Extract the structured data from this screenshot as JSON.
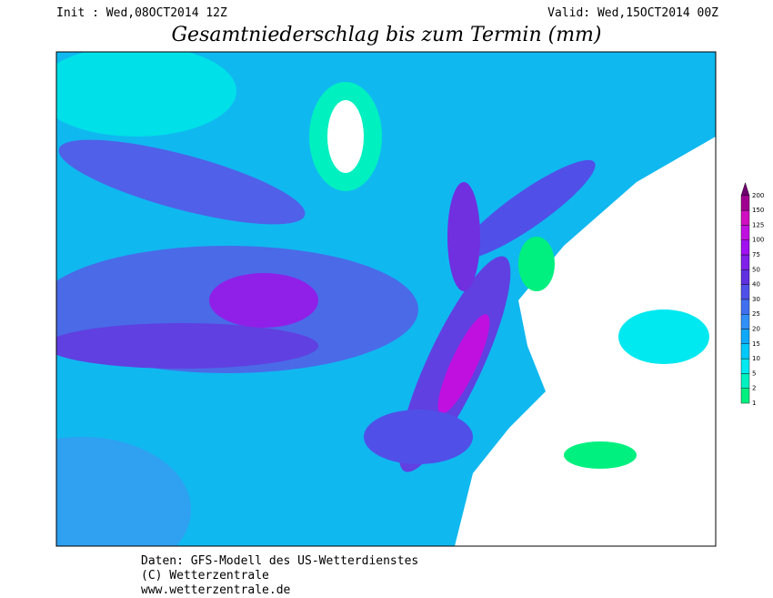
{
  "header": {
    "init": "Init : Wed,08OCT2014 12Z",
    "valid": "Valid: Wed,15OCT2014 00Z",
    "title": "Gesamtniederschlag bis zum Termin (mm)"
  },
  "legend": {
    "levels": [
      1,
      2,
      5,
      10,
      15,
      20,
      25,
      30,
      40,
      50,
      75,
      100,
      125,
      150,
      200
    ],
    "colors": [
      "#00f080",
      "#00f0c0",
      "#00e8f0",
      "#00c8f8",
      "#10a8f8",
      "#3090f8",
      "#4070f0",
      "#5050e8",
      "#6030e0",
      "#8020e8",
      "#a010f0",
      "#c010e0",
      "#d010c0",
      "#a00090",
      "#700070"
    ]
  },
  "footer": {
    "lines": [
      "Daten: GFS-Modell des US-Wetterdienstes",
      "(C) Wetterzentrale",
      "www.wetterzentrale.de"
    ]
  }
}
